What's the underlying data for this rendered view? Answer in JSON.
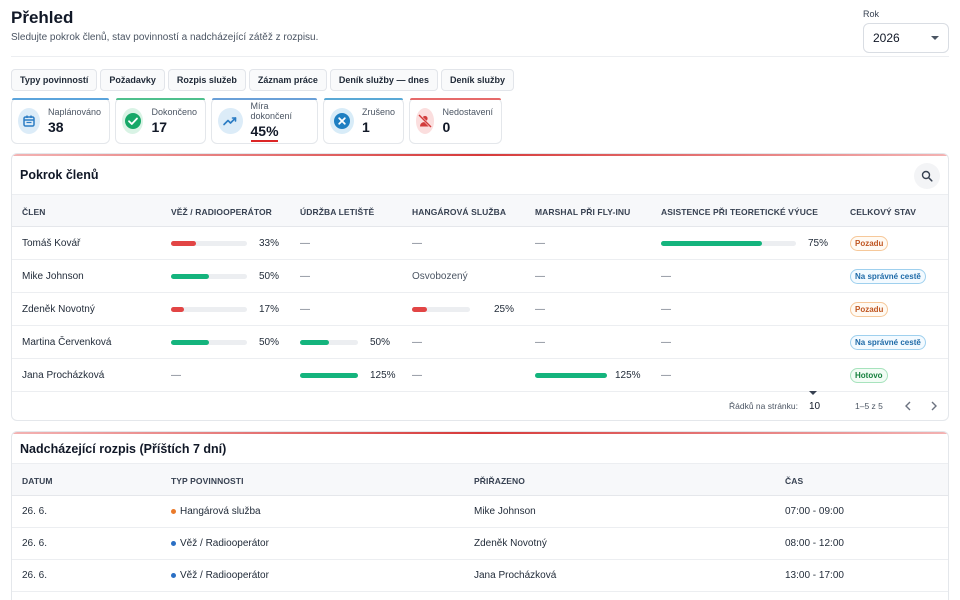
{
  "header": {
    "title": "Přehled",
    "subtitle": "Sledujte pokrok členů, stav povinností a nadcházející zátěž z rozpisu."
  },
  "year": {
    "label": "Rok",
    "value": "2026"
  },
  "tabs": [
    "Typy povinností",
    "Požadavky",
    "Rozpis služeb",
    "Záznam práce",
    "Deník služby — dnes",
    "Deník služby"
  ],
  "stats": [
    {
      "label": "Naplánováno",
      "value": "38",
      "icon": "calendar-icon",
      "color": "#2b7cc4"
    },
    {
      "label": "Dokončeno",
      "value": "17",
      "icon": "check-circle-icon",
      "color": "#17a868"
    },
    {
      "label": "Míra dokončení",
      "value": "45%",
      "icon": "trending-up-icon",
      "color": "#2b7cc4"
    },
    {
      "label": "Zrušeno",
      "value": "1",
      "icon": "x-circle-icon",
      "color": "#1e7fc2"
    },
    {
      "label": "Nedostavení",
      "value": "0",
      "icon": "person-off-icon",
      "color": "#d23b3b"
    }
  ],
  "progress": {
    "title": "Pokrok členů",
    "columns": [
      "ČLEN",
      "VĚŽ / RADIOOPERÁTOR",
      "ÚDRŽBA LETIŠTĚ",
      "HANGÁROVÁ SLUŽBA",
      "MARSHAL PŘI FLY-INU",
      "ASISTENCE PŘI TEORETICKÉ VÝUCE",
      "CELKOVÝ STAV"
    ],
    "rows": [
      {
        "name": "Tomáš Kovář",
        "status": "Pozadu",
        "status_color": "orange",
        "cells": [
          {
            "type": "bar",
            "pct": "33%",
            "fill": 0.33,
            "color": "red"
          },
          {
            "type": "dash",
            "text": "—"
          },
          {
            "type": "dash",
            "text": "—"
          },
          {
            "type": "dash",
            "text": "—"
          },
          {
            "type": "bar",
            "pct": "75%",
            "fill": 0.75,
            "color": "green"
          }
        ]
      },
      {
        "name": "Mike Johnson",
        "status": "Na správné cestě",
        "status_color": "blue",
        "cells": [
          {
            "type": "bar",
            "pct": "50%",
            "fill": 0.5,
            "color": "green"
          },
          {
            "type": "dash",
            "text": "—"
          },
          {
            "type": "text",
            "text": "Osvobozený"
          },
          {
            "type": "dash",
            "text": "—"
          },
          {
            "type": "dash",
            "text": "—"
          }
        ]
      },
      {
        "name": "Zdeněk Novotný",
        "status": "Pozadu",
        "status_color": "orange",
        "cells": [
          {
            "type": "bar",
            "pct": "17%",
            "fill": 0.17,
            "color": "red"
          },
          {
            "type": "dash",
            "text": "—"
          },
          {
            "type": "bar",
            "pct": "25%",
            "fill": 0.25,
            "color": "red"
          },
          {
            "type": "dash",
            "text": "—"
          },
          {
            "type": "dash",
            "text": "—"
          }
        ]
      },
      {
        "name": "Martina Červenková",
        "status": "Na správné cestě",
        "status_color": "blue",
        "cells": [
          {
            "type": "bar",
            "pct": "50%",
            "fill": 0.5,
            "color": "green"
          },
          {
            "type": "bar",
            "pct": "50%",
            "fill": 0.5,
            "color": "green"
          },
          {
            "type": "dash",
            "text": "—"
          },
          {
            "type": "dash",
            "text": "—"
          },
          {
            "type": "dash",
            "text": "—"
          }
        ]
      },
      {
        "name": "Jana Procházková",
        "status": "Hotovo",
        "status_color": "green",
        "cells": [
          {
            "type": "dash",
            "text": "—"
          },
          {
            "type": "bar",
            "pct": "125%",
            "fill": 1.0,
            "color": "green"
          },
          {
            "type": "dash",
            "text": "—"
          },
          {
            "type": "bar",
            "pct": "125%",
            "fill": 1.0,
            "color": "green"
          },
          {
            "type": "dash",
            "text": "—"
          }
        ]
      }
    ],
    "footer": {
      "rows_label": "Řádků na stránku:",
      "rows_value": "10",
      "range": "1–5 z 5"
    }
  },
  "schedule": {
    "title": "Nadcházející rozpis (Příštích 7 dní)",
    "columns": [
      "DATUM",
      "TYP POVINNOSTI",
      "PŘIŘAZENO",
      "ČAS"
    ],
    "rows": [
      {
        "date": "26. 6.",
        "type": "Hangárová služba",
        "dot": "#ea7a2a",
        "assigned": "Mike Johnson",
        "time": "07:00 - 09:00"
      },
      {
        "date": "26. 6.",
        "type": "Věž / Radiooperátor",
        "dot": "#2b6fc4",
        "assigned": "Zdeněk Novotný",
        "time": "08:00 - 12:00"
      },
      {
        "date": "26. 6.",
        "type": "Věž / Radiooperátor",
        "dot": "#2b6fc4",
        "assigned": "Jana Procházková",
        "time": "13:00 - 17:00"
      }
    ]
  }
}
